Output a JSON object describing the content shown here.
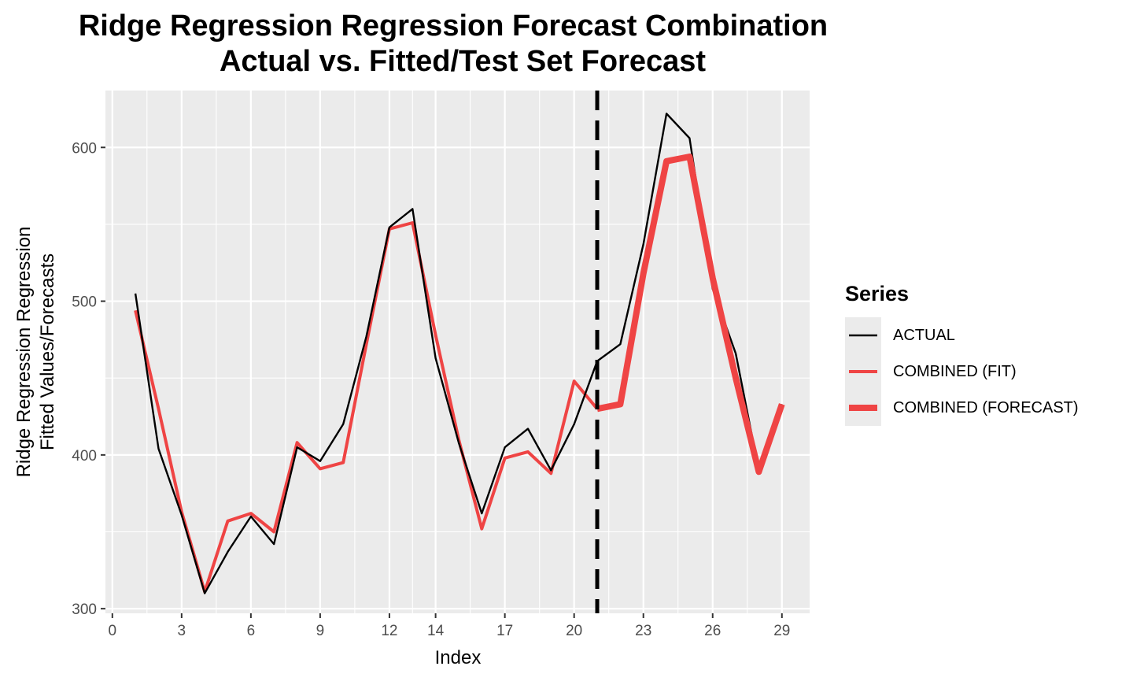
{
  "chart_data": {
    "type": "line",
    "title": [
      "Ridge Regression Regression Forecast Combination",
      "Actual vs. Fitted/Test Set Forecast"
    ],
    "xlabel": "Index",
    "ylabel": [
      "Ridge Regression Regression",
      "Fitted Values/Forecasts"
    ],
    "xlim": [
      -0.3,
      30.2
    ],
    "ylim": [
      297,
      637
    ],
    "x_ticks": [
      0,
      3,
      6,
      9,
      12,
      14,
      17,
      20,
      23,
      26,
      29
    ],
    "y_ticks": [
      300,
      400,
      500,
      600
    ],
    "x_minor_ticks": [
      1.5,
      4.5,
      7.5,
      10.5,
      13,
      15.5,
      18.5,
      21.5,
      24.5,
      27.5
    ],
    "y_minor_ticks": [
      350,
      450,
      550
    ],
    "vline_x": 21,
    "grid": true,
    "legend": {
      "title": "Series",
      "position": "right",
      "entries": [
        "ACTUAL",
        "COMBINED (FIT)",
        "COMBINED (FORECAST)"
      ]
    },
    "series": [
      {
        "name": "ACTUAL",
        "color": "#000000",
        "x": [
          1,
          2,
          3,
          4,
          5,
          6,
          7,
          8,
          9,
          10,
          11,
          12,
          13,
          14,
          15,
          16,
          17,
          18,
          19,
          20,
          21,
          22,
          23,
          24,
          25,
          26,
          27,
          28,
          29
        ],
        "y": [
          505,
          404,
          361,
          310,
          337,
          360,
          342,
          405,
          396,
          420,
          477,
          548,
          560,
          463,
          408,
          362,
          405,
          417,
          390,
          420,
          461,
          472,
          537,
          622,
          606,
          508,
          466,
          390,
          433
        ]
      },
      {
        "name": "COMBINED (FIT)",
        "color": "#ef4444",
        "x": [
          1,
          2,
          3,
          4,
          5,
          6,
          7,
          8,
          9,
          10,
          11,
          12,
          13,
          14,
          15,
          16,
          17,
          18,
          19,
          20,
          21
        ],
        "y": [
          494,
          430,
          363,
          311,
          357,
          362,
          350,
          408,
          391,
          395,
          472,
          547,
          551,
          478,
          410,
          352,
          398,
          402,
          388,
          448,
          430
        ]
      },
      {
        "name": "COMBINED (FORECAST)",
        "color": "#ef4444",
        "x": [
          21,
          22,
          23,
          24,
          25,
          26,
          27,
          28,
          29
        ],
        "y": [
          430,
          433,
          518,
          591,
          594,
          515,
          450,
          389,
          433
        ]
      }
    ]
  }
}
